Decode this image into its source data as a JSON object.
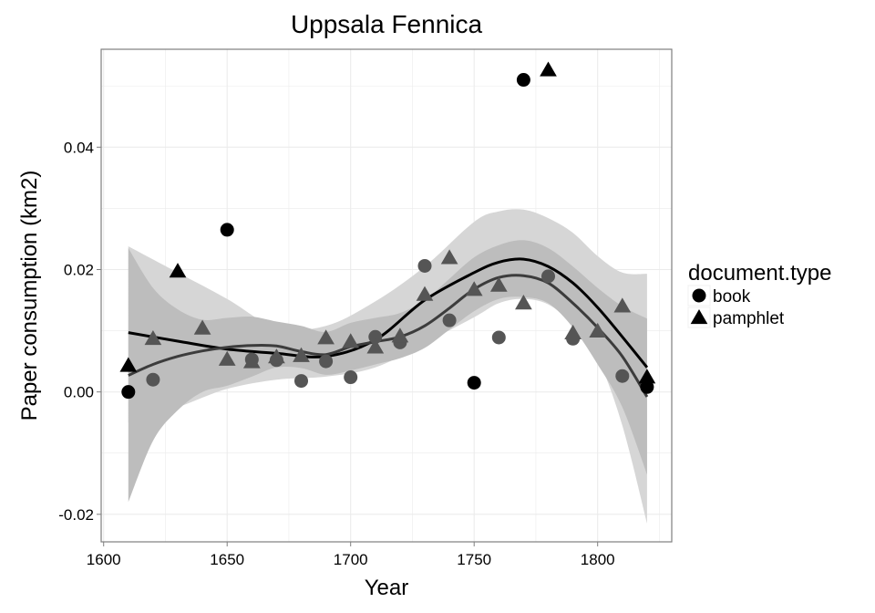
{
  "chart_data": {
    "type": "scatter",
    "title": "Uppsala Fennica",
    "xlabel": "Year",
    "ylabel": "Paper consumption (km2)",
    "xlim": [
      1599,
      1830
    ],
    "ylim": [
      -0.0245,
      0.056
    ],
    "x_ticks": [
      1600,
      1650,
      1700,
      1750,
      1800
    ],
    "y_ticks": [
      -0.02,
      0.0,
      0.02,
      0.04
    ],
    "y_tick_labels": [
      "-0.02",
      "0.00",
      "0.02",
      "0.04"
    ],
    "grid": true,
    "legend": {
      "title": "document.type",
      "position": "right",
      "entries": [
        {
          "label": "book",
          "shape": "circle"
        },
        {
          "label": "pamphlet",
          "shape": "triangle"
        }
      ]
    },
    "colors": {
      "panel_background": "#ffffff",
      "grid": "#ebebeb",
      "border": "#7f7f7f",
      "outer_band": "#d6d6d6",
      "inner_band": "#bdbdbd",
      "dark_series": "#000000",
      "gray_series": "#555555",
      "dark_line": "#000000",
      "gray_line": "#3c3c3c"
    },
    "series": [
      {
        "type": "book",
        "shade": "dark",
        "shape": "circle",
        "x": [
          1610,
          1650,
          1750,
          1770,
          1820
        ],
        "y": [
          0.0,
          0.0265,
          0.0015,
          0.051,
          0.0008
        ]
      },
      {
        "type": "pamphlet",
        "shade": "dark",
        "shape": "triangle",
        "x": [
          1610,
          1630,
          1780,
          1820
        ],
        "y": [
          0.0042,
          0.0196,
          0.0525,
          0.0023
        ]
      },
      {
        "type": "book",
        "shade": "gray",
        "shape": "circle",
        "x": [
          1620,
          1660,
          1670,
          1680,
          1690,
          1700,
          1710,
          1720,
          1730,
          1740,
          1760,
          1780,
          1790,
          1810
        ],
        "y": [
          0.002,
          0.0053,
          0.0052,
          0.0018,
          0.005,
          0.0024,
          0.009,
          0.0081,
          0.0206,
          0.0117,
          0.0089,
          0.0189,
          0.0087,
          0.0026
        ]
      },
      {
        "type": "pamphlet",
        "shade": "gray",
        "shape": "triangle",
        "x": [
          1620,
          1640,
          1650,
          1660,
          1670,
          1680,
          1690,
          1700,
          1710,
          1720,
          1730,
          1740,
          1750,
          1760,
          1770,
          1790,
          1800,
          1810
        ],
        "y": [
          0.0086,
          0.0103,
          0.0052,
          0.0048,
          0.0056,
          0.0058,
          0.0087,
          0.0081,
          0.0072,
          0.009,
          0.0158,
          0.0218,
          0.0166,
          0.0173,
          0.0144,
          0.0095,
          0.0098,
          0.0139
        ]
      }
    ],
    "smooth": [
      {
        "shade": "dark",
        "x": [
          1610,
          1630,
          1650,
          1670,
          1690,
          1710,
          1730,
          1750,
          1760,
          1770,
          1780,
          1790,
          1800,
          1810,
          1820
        ],
        "y": [
          0.0097,
          0.0083,
          0.007,
          0.0063,
          0.0058,
          0.0085,
          0.015,
          0.0195,
          0.0212,
          0.0217,
          0.0205,
          0.0178,
          0.0138,
          0.009,
          0.004
        ],
        "ci_lower": [
          -0.005,
          -0.0025,
          0.0005,
          0.002,
          0.0025,
          0.004,
          0.008,
          0.0122,
          0.0145,
          0.0152,
          0.0143,
          0.011,
          0.0055,
          -0.0055,
          -0.0215
        ],
        "ci_upper": [
          0.0238,
          0.0195,
          0.0152,
          0.0105,
          0.0108,
          0.0148,
          0.0205,
          0.0278,
          0.0295,
          0.0298,
          0.0284,
          0.026,
          0.0222,
          0.0195,
          0.0193
        ]
      },
      {
        "shade": "gray",
        "x": [
          1610,
          1620,
          1630,
          1640,
          1650,
          1660,
          1670,
          1680,
          1690,
          1700,
          1710,
          1720,
          1730,
          1740,
          1750,
          1760,
          1770,
          1780,
          1790,
          1800,
          1810,
          1820
        ],
        "y": [
          0.0027,
          0.0045,
          0.0058,
          0.0067,
          0.0073,
          0.0076,
          0.0075,
          0.0066,
          0.0061,
          0.0074,
          0.0082,
          0.009,
          0.0108,
          0.0137,
          0.0168,
          0.0187,
          0.019,
          0.0178,
          0.0145,
          0.0105,
          0.0058,
          -0.0008
        ],
        "ci_lower": [
          -0.018,
          -0.008,
          -0.003,
          0.0,
          0.001,
          0.0025,
          0.004,
          0.0039,
          0.0028,
          0.0035,
          0.0045,
          0.0055,
          0.0072,
          0.0102,
          0.0132,
          0.0152,
          0.0155,
          0.0145,
          0.0105,
          0.0045,
          -0.0025,
          -0.0135
        ],
        "ci_upper": [
          0.0235,
          0.017,
          0.0135,
          0.0118,
          0.0121,
          0.0123,
          0.0115,
          0.0108,
          0.0098,
          0.0113,
          0.0121,
          0.0129,
          0.015,
          0.0185,
          0.022,
          0.024,
          0.0248,
          0.0235,
          0.0205,
          0.017,
          0.014,
          0.012
        ]
      }
    ]
  }
}
